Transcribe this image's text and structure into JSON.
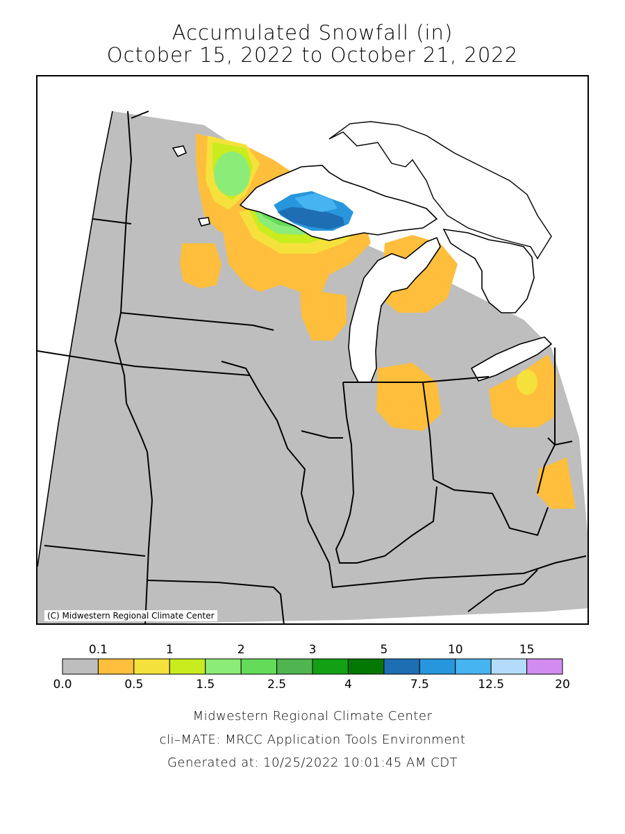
{
  "title": {
    "line1": "Accumulated Snowfall (in)",
    "line2": "October 15, 2022 to October 21, 2022"
  },
  "map": {
    "copyright": "(C) Midwestern Regional Climate Center"
  },
  "legend": {
    "top_labels": [
      "0.1",
      "1",
      "2",
      "3",
      "5",
      "10",
      "15"
    ],
    "bottom_labels": [
      "0.0",
      "0.5",
      "1.5",
      "2.5",
      "4",
      "7.5",
      "12.5",
      "20"
    ],
    "colors": [
      "#bebebe",
      "#ffbe3c",
      "#f5e13c",
      "#c8ec1e",
      "#8cec78",
      "#64dc5a",
      "#50b450",
      "#14a014",
      "#037803",
      "#1e6eb4",
      "#2896dc",
      "#46b4f0",
      "#b4dcfa",
      "#d28cf0"
    ]
  },
  "footer": {
    "line1": "Midwestern Regional Climate Center",
    "line2": "cli–MATE: MRCC Application Tools Environment",
    "line3": "Generated at: 10/25/2022 10:01:45 AM CDT"
  }
}
